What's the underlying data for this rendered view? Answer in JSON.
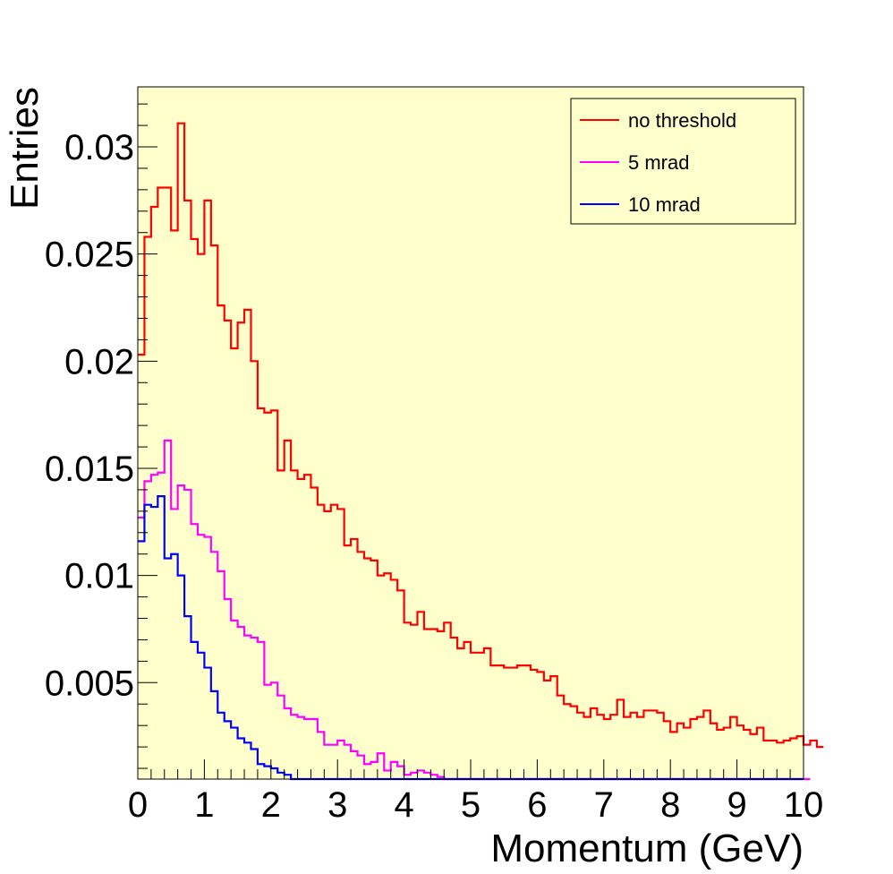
{
  "chart_data": {
    "type": "line",
    "style": "step-histogram",
    "xlabel": "Momentum (GeV)",
    "ylabel": "Entries",
    "xlim": [
      0,
      10
    ],
    "ylim": [
      0.0005,
      0.0328
    ],
    "x_ticks": [
      0,
      1,
      2,
      3,
      4,
      5,
      6,
      7,
      8,
      9,
      10
    ],
    "x_tick_labels": [
      "0",
      "1",
      "2",
      "3",
      "4",
      "5",
      "6",
      "7",
      "8",
      "9",
      "10"
    ],
    "y_ticks": [
      0.005,
      0.01,
      0.015,
      0.02,
      0.025,
      0.03
    ],
    "y_tick_labels": [
      "0.005",
      "0.01",
      "0.015",
      "0.02",
      "0.025",
      "0.03"
    ],
    "bin_width": 0.1,
    "x_bin_edges_start": 0,
    "grid": false,
    "plot_background": "#ffffcc",
    "legend_position": "top-right",
    "series": [
      {
        "name": "no threshold",
        "color": "#ff0000",
        "values": [
          0.0203,
          0.0258,
          0.0272,
          0.0281,
          0.0281,
          0.0261,
          0.0311,
          0.0275,
          0.0257,
          0.025,
          0.0275,
          0.0254,
          0.0226,
          0.0219,
          0.0206,
          0.0218,
          0.0224,
          0.02,
          0.0178,
          0.0176,
          0.0177,
          0.0149,
          0.0163,
          0.0149,
          0.0145,
          0.0147,
          0.0141,
          0.0133,
          0.013,
          0.0133,
          0.0131,
          0.0114,
          0.0117,
          0.0111,
          0.0108,
          0.0107,
          0.01,
          0.0101,
          0.0098,
          0.0093,
          0.0078,
          0.0077,
          0.0083,
          0.0075,
          0.0075,
          0.0074,
          0.0078,
          0.0071,
          0.0066,
          0.0069,
          0.0064,
          0.0064,
          0.0066,
          0.0058,
          0.0058,
          0.0057,
          0.0057,
          0.0058,
          0.0058,
          0.0056,
          0.0055,
          0.0051,
          0.0053,
          0.0044,
          0.004,
          0.0039,
          0.0036,
          0.0034,
          0.0038,
          0.0035,
          0.0033,
          0.0035,
          0.0042,
          0.0034,
          0.0036,
          0.0034,
          0.0037,
          0.0037,
          0.0036,
          0.0032,
          0.0027,
          0.0031,
          0.0029,
          0.0033,
          0.0034,
          0.0037,
          0.0031,
          0.0028,
          0.0029,
          0.0034,
          0.003,
          0.0028,
          0.0026,
          0.0029,
          0.0023,
          0.0023,
          0.0022,
          0.0023,
          0.0024,
          0.0025,
          0.0021,
          0.0023,
          0.002
        ]
      },
      {
        "name": "5 mrad",
        "color": "#ff00ff",
        "values": [
          0.0127,
          0.0144,
          0.0147,
          0.0148,
          0.0163,
          0.0131,
          0.0142,
          0.014,
          0.0124,
          0.0119,
          0.0118,
          0.0111,
          0.0102,
          0.0089,
          0.0079,
          0.0076,
          0.0072,
          0.0071,
          0.0069,
          0.0049,
          0.005,
          0.0044,
          0.0038,
          0.0035,
          0.0034,
          0.0033,
          0.0033,
          0.0027,
          0.0021,
          0.0021,
          0.0023,
          0.0021,
          0.0018,
          0.0016,
          0.0012,
          0.0013,
          0.0017,
          0.0009,
          0.0013,
          0.0011,
          0.0007,
          0.0008,
          0.0009,
          0.0008,
          0.0007,
          0.0006,
          0.0004,
          0.0004,
          0.0003,
          0.0002,
          0,
          0,
          0,
          0,
          0,
          0,
          0,
          0,
          0,
          0,
          0,
          0,
          0,
          0,
          0,
          0,
          0,
          0,
          0,
          0,
          0,
          0,
          0,
          0,
          0,
          0,
          0,
          0,
          0,
          0,
          0,
          0,
          0,
          0,
          0,
          0,
          0,
          0,
          0,
          0,
          0,
          0,
          0,
          0,
          0,
          0,
          0,
          0,
          0,
          0,
          0
        ]
      },
      {
        "name": "10 mrad",
        "color": "#0000ff",
        "values": [
          0.0116,
          0.0133,
          0.0132,
          0.0137,
          0.0108,
          0.011,
          0.01,
          0.0081,
          0.0069,
          0.0064,
          0.0057,
          0.0046,
          0.0036,
          0.0032,
          0.0029,
          0.0024,
          0.0022,
          0.0019,
          0.0012,
          0.0011,
          0.001,
          0.0008,
          0.0007,
          0.0005,
          0.0004,
          0.0003,
          0.0002,
          0.0002,
          0.0001,
          0.0001,
          0,
          0,
          0,
          0,
          0,
          0,
          0,
          0,
          0,
          0,
          0,
          0,
          0,
          0,
          0,
          0,
          0,
          0,
          0,
          0,
          0,
          0,
          0,
          0,
          0,
          0,
          0,
          0,
          0,
          0,
          0,
          0,
          0,
          0,
          0,
          0,
          0,
          0,
          0,
          0,
          0,
          0,
          0,
          0,
          0,
          0,
          0,
          0,
          0,
          0,
          0,
          0,
          0,
          0,
          0,
          0,
          0,
          0,
          0,
          0,
          0,
          0,
          0,
          0,
          0,
          0,
          0,
          0,
          0,
          0
        ]
      }
    ]
  }
}
